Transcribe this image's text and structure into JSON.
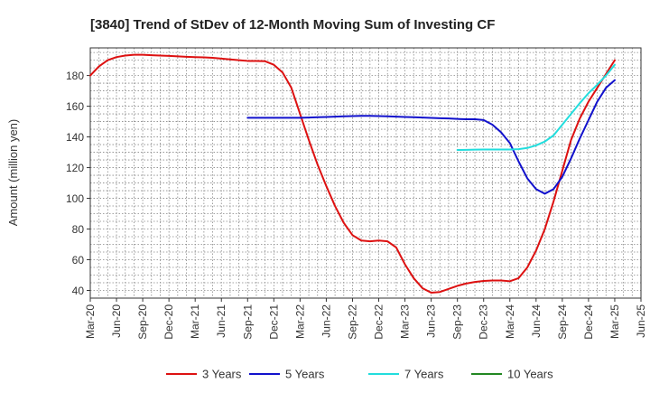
{
  "chart_data": {
    "type": "line",
    "title": "[3840]  Trend of StDev of 12-Month Moving Sum of Investing CF",
    "xlabel": "",
    "ylabel": "Amount (million yen)",
    "x_ticks": [
      "Mar-20",
      "Jun-20",
      "Sep-20",
      "Dec-20",
      "Mar-21",
      "Jun-21",
      "Sep-21",
      "Dec-21",
      "Mar-22",
      "Jun-22",
      "Sep-22",
      "Dec-22",
      "Mar-23",
      "Jun-23",
      "Sep-23",
      "Dec-23",
      "Mar-24",
      "Jun-24",
      "Sep-24",
      "Dec-24",
      "Mar-25",
      "Jun-25"
    ],
    "y_ticks": [
      40,
      60,
      80,
      100,
      120,
      140,
      160,
      180
    ],
    "ylim": [
      35,
      198
    ],
    "grid": true,
    "legend_position": "bottom",
    "series": [
      {
        "name": "3 Years",
        "color": "#dd1111",
        "x": [
          "Mar-20",
          "Apr-20",
          "May-20",
          "Jun-20",
          "Jul-20",
          "Aug-20",
          "Sep-20",
          "Oct-20",
          "Nov-20",
          "Dec-20",
          "Jan-21",
          "Feb-21",
          "Mar-21",
          "Apr-21",
          "May-21",
          "Jun-21",
          "Jul-21",
          "Aug-21",
          "Sep-21",
          "Oct-21",
          "Nov-21",
          "Dec-21",
          "Jan-22",
          "Feb-22",
          "Mar-22",
          "Apr-22",
          "May-22",
          "Jun-22",
          "Jul-22",
          "Aug-22",
          "Sep-22",
          "Oct-22",
          "Nov-22",
          "Dec-22",
          "Jan-23",
          "Feb-23",
          "Mar-23",
          "Apr-23",
          "May-23",
          "Jun-23",
          "Jul-23",
          "Aug-23",
          "Sep-23",
          "Oct-23",
          "Nov-23",
          "Dec-23",
          "Jan-24",
          "Feb-24",
          "Mar-24",
          "Apr-24",
          "May-24",
          "Jun-24",
          "Jul-24",
          "Aug-24",
          "Sep-24",
          "Oct-24",
          "Nov-24",
          "Dec-24",
          "Jan-25",
          "Feb-25",
          "Mar-25"
        ],
        "values": [
          180,
          186,
          190,
          192,
          193,
          193.5,
          193.5,
          193.2,
          193,
          192.8,
          192.5,
          192.2,
          192,
          191.8,
          191.5,
          191,
          190.5,
          190,
          189.5,
          189.5,
          189.3,
          187,
          182,
          172,
          155,
          138,
          122,
          108,
          95,
          84,
          76,
          72.5,
          72,
          72.5,
          72,
          68,
          57,
          48,
          41.5,
          38.5,
          39,
          41,
          43,
          44.5,
          45.5,
          46.2,
          46.5,
          46.5,
          46,
          48,
          55,
          66,
          80,
          98,
          118,
          138,
          152,
          163,
          172,
          181,
          190
        ]
      },
      {
        "name": "5 Years",
        "color": "#1111cc",
        "x": [
          "Sep-21",
          "Oct-21",
          "Nov-21",
          "Dec-21",
          "Jan-22",
          "Feb-22",
          "Mar-22",
          "Apr-22",
          "May-22",
          "Jun-22",
          "Jul-22",
          "Aug-22",
          "Sep-22",
          "Oct-22",
          "Nov-22",
          "Dec-22",
          "Jan-23",
          "Feb-23",
          "Mar-23",
          "Apr-23",
          "May-23",
          "Jun-23",
          "Jul-23",
          "Aug-23",
          "Sep-23",
          "Oct-23",
          "Nov-23",
          "Dec-23",
          "Jan-24",
          "Feb-24",
          "Mar-24",
          "Apr-24",
          "May-24",
          "Jun-24",
          "Jul-24",
          "Aug-24",
          "Sep-24",
          "Oct-24",
          "Nov-24",
          "Dec-24",
          "Jan-25",
          "Feb-25",
          "Mar-25"
        ],
        "values": [
          152.5,
          152.5,
          152.5,
          152.5,
          152.5,
          152.5,
          152.5,
          152.6,
          152.8,
          153,
          153.2,
          153.4,
          153.6,
          153.7,
          153.7,
          153.6,
          153.4,
          153.2,
          153,
          152.8,
          152.6,
          152.4,
          152.2,
          152,
          151.7,
          151.5,
          151.5,
          151,
          148,
          143,
          136,
          124,
          113,
          106,
          103,
          106,
          114,
          126,
          139,
          151,
          163,
          172,
          177
        ]
      },
      {
        "name": "7 Years",
        "color": "#22dddd",
        "x": [
          "Sep-23",
          "Oct-23",
          "Nov-23",
          "Dec-23",
          "Jan-24",
          "Feb-24",
          "Mar-24",
          "Apr-24",
          "May-24",
          "Jun-24",
          "Jul-24",
          "Aug-24",
          "Sep-24",
          "Oct-24",
          "Nov-24",
          "Dec-24",
          "Jan-25",
          "Feb-25",
          "Mar-25"
        ],
        "values": [
          131.5,
          131.6,
          131.7,
          131.8,
          131.8,
          131.8,
          131.8,
          132,
          132.8,
          134.5,
          137,
          141,
          148,
          155,
          162,
          168.5,
          174,
          180,
          187
        ]
      },
      {
        "name": "10 Years",
        "color": "#228822",
        "x": [],
        "values": []
      }
    ]
  }
}
